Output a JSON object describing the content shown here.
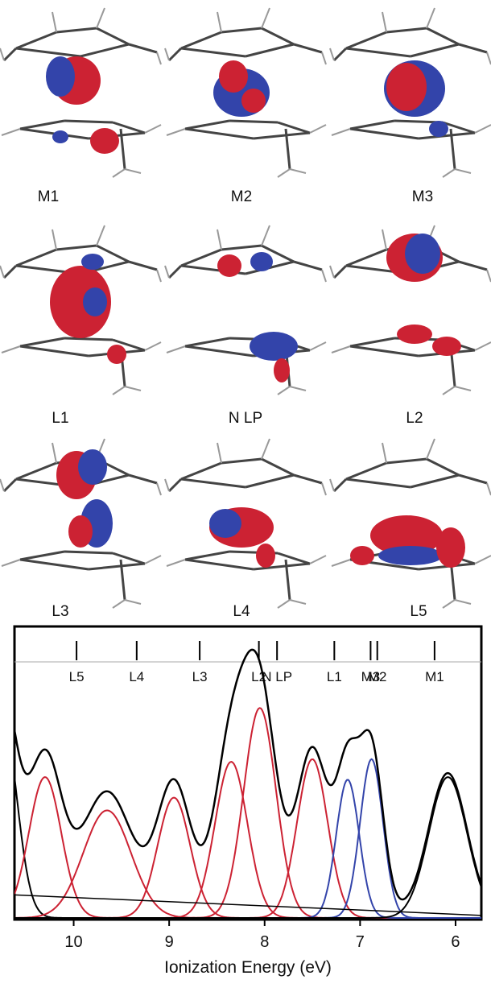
{
  "orbitals": {
    "labels": [
      "M1",
      "M2",
      "M3",
      "L1",
      "N LP",
      "L2",
      "L3",
      "L4",
      "L5"
    ]
  },
  "chart_data": {
    "type": "line",
    "xlabel": "Ionization Energy (eV)",
    "xlim": [
      10.62,
      5.73
    ],
    "xticks": [
      10,
      9,
      8,
      7,
      6
    ],
    "ylim": [
      0,
      100
    ],
    "sticks": {
      "labels": [
        "L5",
        "L4",
        "L3",
        "L2",
        "N LP",
        "L1",
        "M3",
        "M2",
        "M1"
      ],
      "x": [
        9.97,
        9.34,
        8.68,
        8.06,
        7.87,
        7.27,
        6.89,
        6.82,
        6.22
      ]
    },
    "peaks": [
      {
        "center": 10.75,
        "height": 80,
        "width": 0.15,
        "color": "#000000"
      },
      {
        "center": 10.3,
        "height": 55,
        "width": 0.17,
        "color": "#cc2233"
      },
      {
        "center": 9.65,
        "height": 42,
        "width": 0.25,
        "color": "#cc2233"
      },
      {
        "center": 8.95,
        "height": 47,
        "width": 0.17,
        "color": "#cc2233"
      },
      {
        "center": 8.35,
        "height": 61,
        "width": 0.17,
        "color": "#cc2233"
      },
      {
        "center": 8.05,
        "height": 82,
        "width": 0.17,
        "color": "#cc2233"
      },
      {
        "center": 7.5,
        "height": 62,
        "width": 0.16,
        "color": "#cc2233"
      },
      {
        "center": 7.13,
        "height": 54,
        "width": 0.12,
        "color": "#3344aa"
      },
      {
        "center": 6.88,
        "height": 62,
        "width": 0.12,
        "color": "#3344aa"
      },
      {
        "center": 6.08,
        "height": 55,
        "width": 0.2,
        "color": "#000000"
      }
    ],
    "background": {
      "x": [
        10.62,
        5.73
      ],
      "values": [
        9,
        1
      ]
    }
  }
}
